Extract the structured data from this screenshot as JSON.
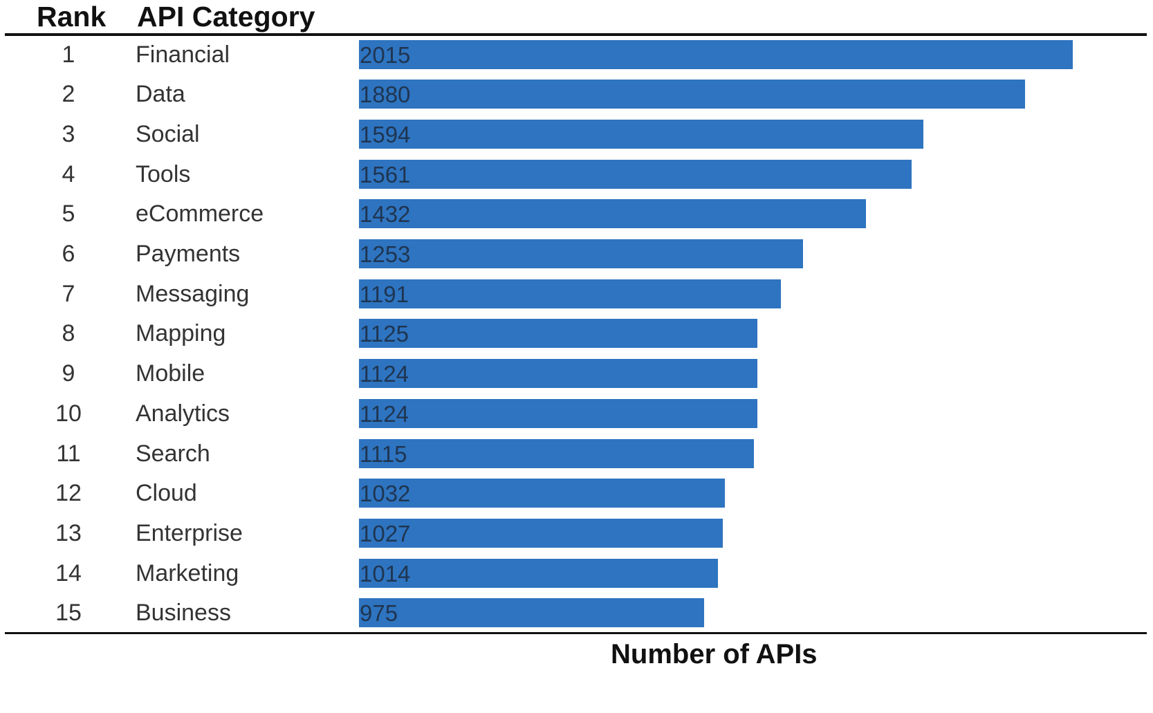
{
  "chart_data": {
    "type": "bar",
    "orientation": "horizontal",
    "headers": {
      "rank": "Rank",
      "category": "API Category"
    },
    "xlabel": "Number of APIs",
    "categories": [
      "Financial",
      "Data",
      "Social",
      "Tools",
      "eCommerce",
      "Payments",
      "Messaging",
      "Mapping",
      "Mobile",
      "Analytics",
      "Search",
      "Cloud",
      "Enterprise",
      "Marketing",
      "Business"
    ],
    "ranks": [
      "1",
      "2",
      "3",
      "4",
      "5",
      "6",
      "7",
      "8",
      "9",
      "10",
      "11",
      "12",
      "13",
      "14",
      "15"
    ],
    "values": [
      2015,
      1880,
      1594,
      1561,
      1432,
      1253,
      1191,
      1125,
      1124,
      1124,
      1115,
      1032,
      1027,
      1014,
      975
    ],
    "xlim": [
      0,
      2015
    ],
    "bar_color": "#2e74c0",
    "grid": false,
    "legend": "none"
  }
}
